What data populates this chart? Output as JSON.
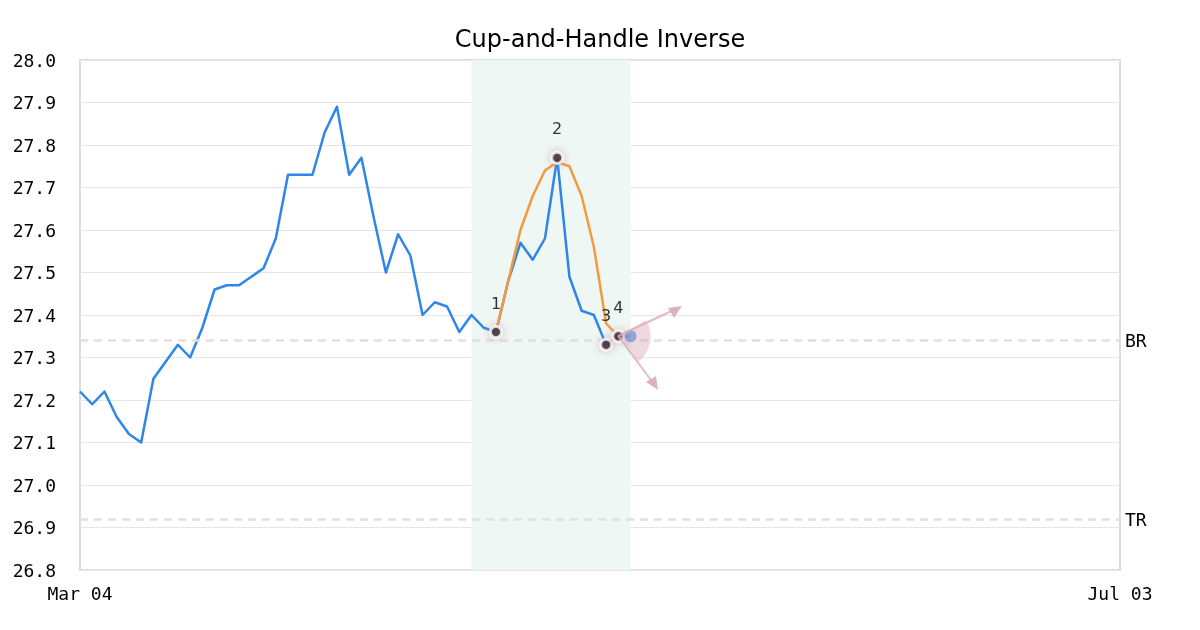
{
  "chart_data": {
    "type": "line",
    "title": "Cup-and-Handle Inverse",
    "categories": [
      "Mar 04",
      null,
      null,
      null,
      null,
      null,
      null,
      null,
      null,
      null,
      null,
      null,
      null,
      null,
      null,
      null,
      null,
      null,
      null,
      null,
      null,
      null,
      null,
      null,
      null,
      null,
      null,
      null,
      null,
      null,
      null,
      null,
      null,
      null,
      null,
      null,
      null,
      null,
      null,
      null,
      null,
      null,
      null,
      null,
      null,
      null,
      null,
      null,
      null,
      null,
      null,
      null,
      null,
      null,
      null,
      null,
      null,
      null,
      null,
      null,
      null,
      null,
      null,
      null,
      null,
      null,
      null,
      null,
      null,
      null,
      null,
      null,
      null,
      null,
      null,
      null,
      null,
      null,
      null,
      null,
      null,
      null,
      null,
      null,
      null,
      "Jul 03"
    ],
    "ylim": [
      26.8,
      28.0
    ],
    "yticks": [
      26.8,
      26.9,
      {
        "value": 27.0,
        "label": "27.0"
      },
      27.1,
      27.2,
      27.3,
      27.4,
      27.5,
      27.6,
      27.7,
      27.8,
      27.9,
      {
        "value": 28.0,
        "label": "28.0"
      }
    ],
    "grid": "y",
    "annotations": [
      "1",
      "2",
      "3",
      "4"
    ],
    "series": [
      {
        "color": "#2e86e8",
        "marker": "none",
        "values": [
          27.22,
          27.19,
          27.22,
          27.16,
          27.12,
          27.1,
          27.25,
          27.29,
          27.33,
          27.3,
          27.37,
          27.46,
          27.47,
          27.47,
          27.49,
          27.51,
          27.58,
          27.73,
          27.73,
          27.73,
          27.83,
          27.89,
          27.73,
          27.77,
          27.63,
          27.5,
          27.59,
          27.54,
          27.4,
          27.43,
          27.42,
          27.36,
          27.4,
          27.37,
          27.36,
          27.48,
          27.57,
          27.53,
          27.58,
          27.77,
          27.49,
          27.41,
          27.4,
          27.33,
          27.35,
          27.35,
          null,
          null,
          null,
          null,
          null,
          null,
          null,
          null,
          null,
          null,
          null,
          null,
          null,
          null,
          null,
          null,
          null,
          null,
          null,
          null,
          null,
          null,
          null,
          null,
          null,
          null,
          null,
          null,
          null,
          null,
          null,
          null,
          null,
          null,
          null,
          null,
          null,
          null,
          null,
          null
        ]
      },
      {
        "type": "line",
        "color": "#f5993f",
        "marker": "none",
        "values": [
          null,
          null,
          null,
          null,
          null,
          null,
          null,
          null,
          null,
          null,
          null,
          null,
          null,
          null,
          null,
          null,
          null,
          null,
          null,
          null,
          null,
          null,
          null,
          null,
          null,
          null,
          null,
          null,
          null,
          null,
          null,
          null,
          null,
          null,
          27.36,
          27.48,
          27.6,
          27.68,
          27.74,
          27.76,
          27.75,
          27.68,
          27.56,
          27.38,
          27.35,
          null,
          null,
          null,
          null,
          null,
          null,
          null,
          null,
          null,
          null,
          null,
          null,
          null,
          null,
          null,
          null,
          null,
          null,
          null,
          null,
          null,
          null,
          null,
          null,
          null,
          null,
          null,
          null,
          null,
          null,
          null,
          null,
          null,
          null,
          null,
          null,
          null,
          null,
          null,
          null,
          null
        ]
      },
      {
        "type": "scatter",
        "color": "#000000",
        "marker": "circle",
        "values": [
          null,
          null,
          null,
          null,
          null,
          null,
          null,
          null,
          null,
          null,
          null,
          null,
          null,
          null,
          null,
          null,
          null,
          null,
          null,
          null,
          null,
          null,
          null,
          null,
          null,
          null,
          null,
          null,
          null,
          null,
          null,
          null,
          null,
          null,
          27.36,
          null,
          null,
          null,
          null,
          27.77,
          null,
          null,
          null,
          27.33,
          27.35,
          null,
          null,
          null,
          null,
          null,
          null,
          null,
          null,
          null,
          null,
          null,
          null,
          null,
          null,
          null,
          null,
          null,
          null,
          null,
          null,
          null,
          null,
          null,
          null,
          null,
          null,
          null,
          null,
          null,
          null,
          null,
          null,
          null,
          null,
          null,
          null,
          null,
          null,
          null,
          null,
          null
        ]
      },
      {
        "type": "scatter",
        "color": "#2e86e8",
        "marker": "circle",
        "values": [
          null,
          null,
          null,
          null,
          null,
          null,
          null,
          null,
          null,
          null,
          null,
          null,
          null,
          null,
          null,
          null,
          null,
          null,
          null,
          null,
          null,
          null,
          null,
          null,
          null,
          null,
          null,
          null,
          null,
          null,
          null,
          null,
          null,
          null,
          null,
          null,
          null,
          null,
          null,
          null,
          null,
          null,
          null,
          null,
          null,
          27.35,
          null,
          null,
          null,
          null,
          null,
          null,
          null,
          null,
          null,
          null,
          null,
          null,
          null,
          null,
          null,
          null,
          null,
          null,
          null,
          null,
          null,
          null,
          null,
          null,
          null,
          null,
          null,
          null,
          null,
          null,
          null,
          null,
          null,
          null,
          null,
          null,
          null,
          null,
          null,
          null
        ]
      }
    ],
    "ref_lines": [
      {
        "axis": "y",
        "value": 27.34,
        "label": "BR",
        "color": "#e0e0e0",
        "line_style": "dashed"
      },
      {
        "axis": "y",
        "value": 26.92,
        "label": "TR",
        "color": "#e0e0e0",
        "line_style": "dashed"
      }
    ]
  }
}
